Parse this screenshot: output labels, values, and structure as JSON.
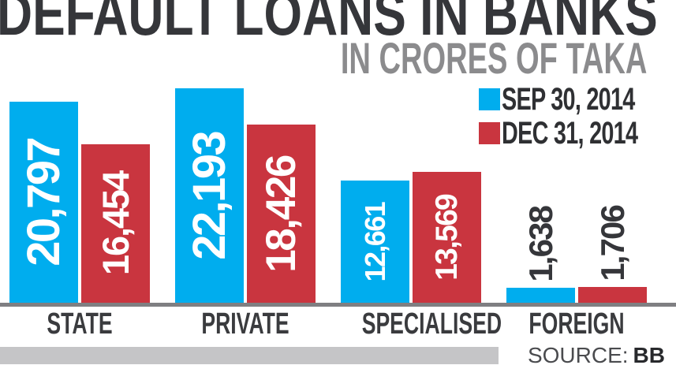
{
  "title": "DEFAULT LOANS IN BANKS",
  "subtitle": "IN CRORES OF TAKA",
  "legend": [
    {
      "label": "SEP 30, 2014",
      "color": "#00adee"
    },
    {
      "label": "DEC 31, 2014",
      "color": "#c9353f"
    }
  ],
  "source": {
    "label": "SOURCE:",
    "value": "BB"
  },
  "colors": {
    "title": "#35363a",
    "subtitle": "#8b8b8d",
    "series_blue": "#00adee",
    "series_red": "#c9353f",
    "axis_line": "#7f7f82",
    "footer_bar": "#c5c5c7",
    "value_label_inside": "#ffffff",
    "value_label_outside": "#35363a"
  },
  "chart_data": {
    "type": "bar",
    "title": "DEFAULT LOANS IN BANKS",
    "subtitle": "IN CRORES OF TAKA",
    "unit": "crores of taka",
    "categories": [
      "STATE",
      "PRIVATE",
      "SPECIALISED",
      "FOREIGN"
    ],
    "series": [
      {
        "name": "SEP 30, 2014",
        "color": "#00adee",
        "values": [
          20797,
          22193,
          12661,
          1638
        ]
      },
      {
        "name": "DEC 31, 2014",
        "color": "#c9353f",
        "values": [
          16454,
          18426,
          13569,
          1706
        ]
      }
    ],
    "value_labels": [
      [
        "20,797",
        "22,193",
        "12,661",
        "1,638"
      ],
      [
        "16,454",
        "18,426",
        "13,569",
        "1,706"
      ]
    ],
    "ylim": [
      0,
      23000
    ],
    "grid": false,
    "legend_position": "top-right",
    "source": "BB"
  }
}
